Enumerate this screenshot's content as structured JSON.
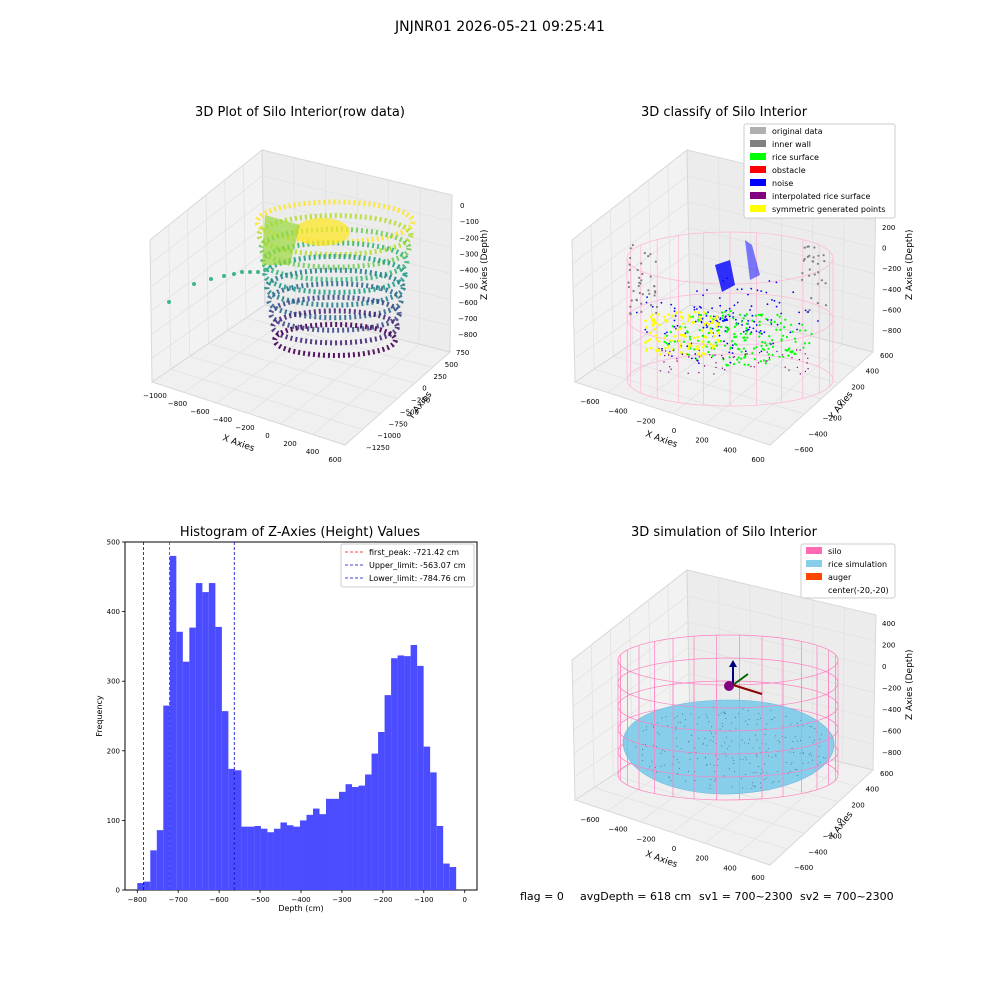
{
  "suptitle": "JNJNR01 2026-05-21 09:25:41",
  "colors": {
    "hist_bar": "#4b4bff",
    "first_peak": "#ff0000",
    "limits": "#0000cc",
    "silo": "#ff69b4",
    "rice": "#87ceeb",
    "auger": "#ff4500",
    "original": "#b0b0b0",
    "inner_wall": "#808080",
    "rice_surface": "#00ff00",
    "obstacle": "#ff0000",
    "noise": "#0000ff",
    "interpolated": "#800080",
    "symmetric": "#ffff00"
  },
  "panel1": {
    "title": "3D Plot of Silo Interior(row data)",
    "xlabel": "X Axies",
    "ylabel": "Y Axies",
    "zlabel": "Z Axies (Depth)",
    "xticks": [
      "−1000",
      "−800",
      "−600",
      "−400",
      "−200",
      "0",
      "200",
      "400",
      "600"
    ],
    "yticks": [
      "750",
      "500",
      "250",
      "0",
      "−250",
      "−500",
      "−750",
      "−1000",
      "−1250"
    ],
    "zticks": [
      "0",
      "−100",
      "−200",
      "−300",
      "−400",
      "−500",
      "−600",
      "−700",
      "−800"
    ]
  },
  "panel2": {
    "title": "3D classify of Silo Interior",
    "xlabel": "X Axies",
    "ylabel": "Y Axies",
    "zlabel": "Z Axies (Depth)",
    "xticks": [
      "−600",
      "−400",
      "−200",
      "0",
      "200",
      "400",
      "600"
    ],
    "yticks": [
      "600",
      "400",
      "200",
      "0",
      "−200",
      "−400",
      "−600"
    ],
    "zticks": [
      "200",
      "0",
      "−200",
      "−400",
      "−600",
      "−800"
    ],
    "legend": [
      "original data",
      "inner wall",
      "rice surface",
      "obstacle",
      "noise",
      "interpolated rice surface",
      "symmetric generated points"
    ]
  },
  "panel4": {
    "title": "3D simulation of Silo Interior",
    "xlabel": "X Axies",
    "ylabel": "Y Axies",
    "zlabel": "Z Axies (Depth)",
    "xticks": [
      "−600",
      "−400",
      "−200",
      "0",
      "200",
      "400",
      "600"
    ],
    "yticks": [
      "600",
      "400",
      "200",
      "0",
      "−200",
      "−400",
      "−600"
    ],
    "zticks": [
      "400",
      "200",
      "0",
      "−200",
      "−400",
      "−600",
      "−800"
    ],
    "legend": [
      "silo",
      "rice simulation",
      "auger",
      "center(-20,-20)"
    ]
  },
  "footer": {
    "flag": "flag = 0",
    "avg": "avgDepth = 618 cm",
    "sv1": "sv1 = 700~2300",
    "sv2": "sv2 = 700~2300"
  },
  "chart_data": [
    {
      "type": "histogram",
      "title": "Histogram of Z-Axies (Height) Values",
      "xlabel": "Depth (cm)",
      "ylabel": "Frequency",
      "xlim": [
        -830,
        30
      ],
      "ylim": [
        0,
        500
      ],
      "xticks": [
        -800,
        -700,
        -600,
        -500,
        -400,
        -300,
        -200,
        -100,
        0
      ],
      "yticks": [
        0,
        100,
        200,
        300,
        400,
        500
      ],
      "bin_start": -800,
      "bin_width": 15.9,
      "counts": [
        10,
        12,
        57,
        86,
        265,
        480,
        371,
        328,
        377,
        441,
        428,
        441,
        378,
        257,
        174,
        172,
        91,
        91,
        92,
        88,
        83,
        88,
        97,
        93,
        91,
        100,
        108,
        117,
        109,
        131,
        131,
        141,
        152,
        148,
        150,
        166,
        196,
        227,
        280,
        333,
        337,
        336,
        352,
        322,
        206,
        169,
        92,
        38,
        33
      ],
      "vlines": [
        {
          "label": "first_peak: -721.42 cm",
          "x": -721.42,
          "color": "#ff0000"
        },
        {
          "label": "Upper_limit: -563.07 cm",
          "x": -563.07,
          "color": "#0000cc"
        },
        {
          "label": "Lower_limit: -784.76 cm",
          "x": -784.76,
          "color": "#0000cc"
        }
      ],
      "legend_position": "top-right",
      "grid": false
    }
  ]
}
